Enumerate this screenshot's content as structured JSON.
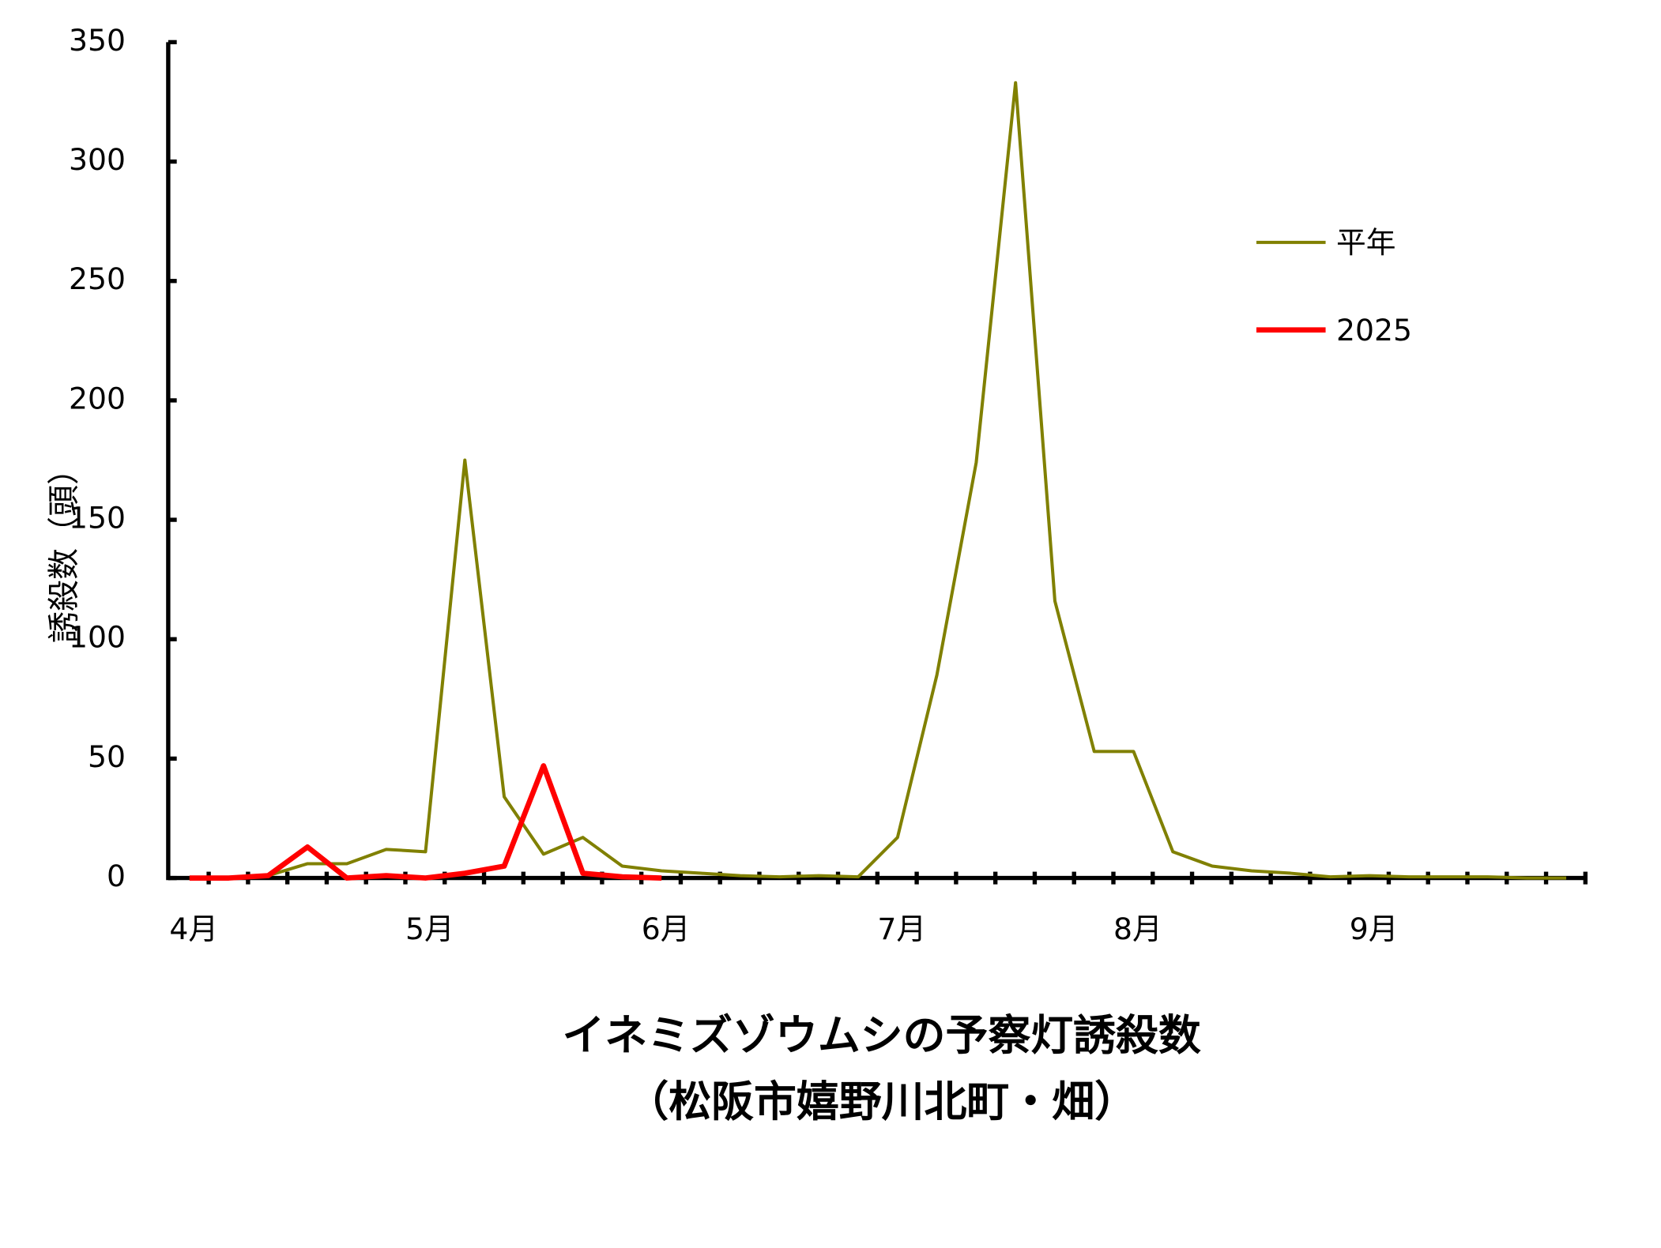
{
  "chart_data": {
    "type": "line",
    "title": "イネミズゾウムシの予察灯誘殺数",
    "subtitle": "（松阪市嬉野川北町・畑）",
    "y_label": "誘殺数（頭）",
    "categories": [
      "4月",
      null,
      null,
      null,
      null,
      null,
      "5月",
      null,
      null,
      null,
      null,
      null,
      "6月",
      null,
      null,
      null,
      null,
      null,
      "7月",
      null,
      null,
      null,
      null,
      null,
      "8月",
      null,
      null,
      null,
      null,
      null,
      "9月",
      null,
      null,
      null,
      null,
      null
    ],
    "series": [
      {
        "name": "平年",
        "color": "#808000",
        "width": 3,
        "values": [
          0,
          0,
          1,
          6,
          6,
          12,
          11,
          175,
          34,
          10,
          17,
          5,
          3,
          2,
          1,
          0.5,
          1,
          0.5,
          17,
          85,
          174,
          333,
          116,
          53,
          53,
          11,
          5,
          3,
          2,
          0.5,
          1,
          0.5,
          0.5,
          0.5,
          0,
          0
        ]
      },
      {
        "name": "2025",
        "color": "#ff0000",
        "width": 5,
        "values": [
          0,
          0,
          1,
          13,
          0,
          1,
          0,
          2,
          5,
          47,
          2,
          0.5,
          0,
          null,
          null,
          null,
          null,
          null,
          null,
          null,
          null,
          null,
          null,
          null,
          null,
          null,
          null,
          null,
          null,
          null,
          null,
          null,
          null,
          null,
          null,
          null
        ]
      }
    ],
    "ylim": [
      0,
      350
    ],
    "yticks": [
      0,
      50,
      100,
      150,
      200,
      250,
      300,
      350
    ],
    "grid": false,
    "legend": "upper right"
  }
}
